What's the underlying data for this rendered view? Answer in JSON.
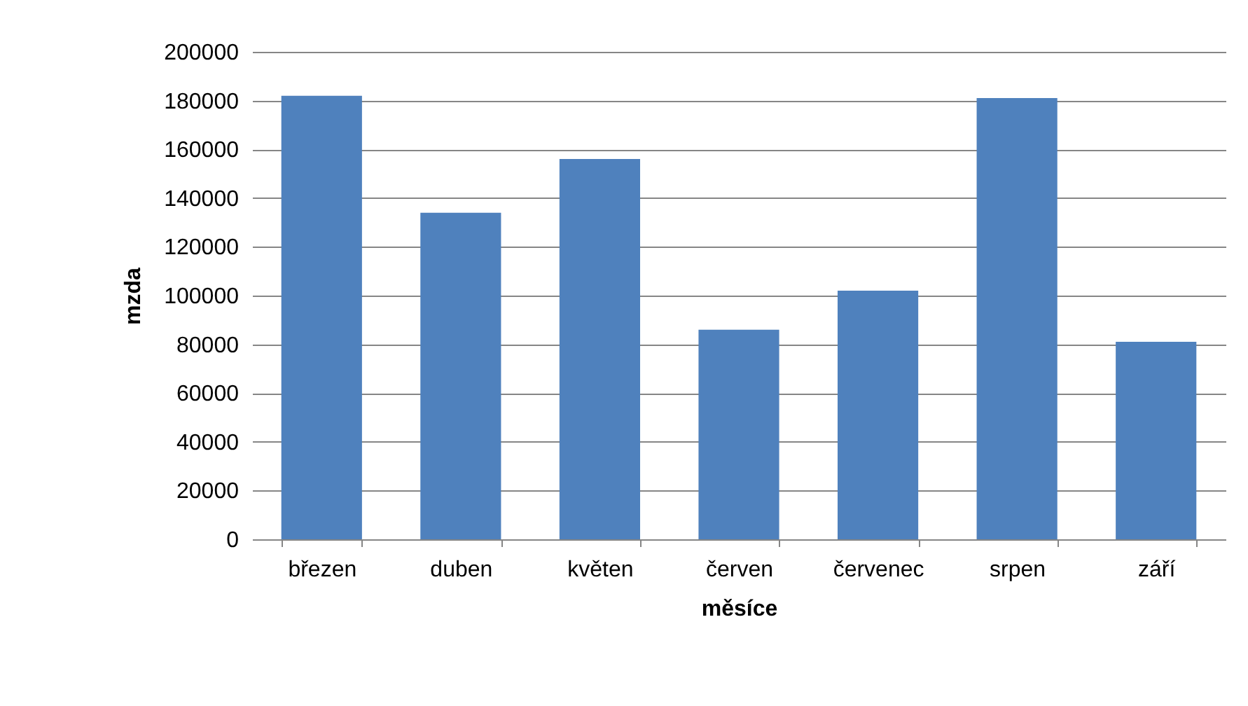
{
  "chart_data": {
    "type": "bar",
    "xlabel": "měsíce",
    "ylabel": "mzda",
    "categories": [
      "březen",
      "duben",
      "květen",
      "červen",
      "červenec",
      "srpen",
      "září"
    ],
    "values": [
      182000,
      134000,
      156000,
      86000,
      102000,
      181000,
      81000
    ],
    "color": "#4f81bd",
    "ylim": [
      0,
      200000
    ],
    "yticks": [
      0,
      20000,
      40000,
      60000,
      80000,
      100000,
      120000,
      140000,
      160000,
      180000,
      200000
    ],
    "grid": "y"
  }
}
